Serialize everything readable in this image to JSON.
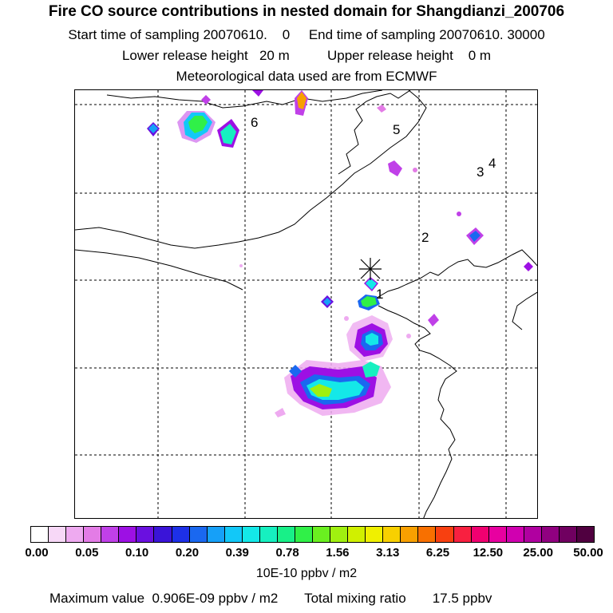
{
  "header": {
    "title": "Fire CO source contributions in nested domain for Shangdianzi_200706",
    "start_label": "Start time of sampling",
    "start_value": "20070610.    0",
    "end_label": "End time of sampling",
    "end_value": "20070610. 30000",
    "lower_label": "Lower release height",
    "lower_value": "20 m",
    "upper_label": "Upper release height",
    "upper_value": "0 m",
    "met_line": "Meteorological data used are from ECMWF"
  },
  "chart_data": {
    "type": "heatmap",
    "title": "Fire CO source contributions in nested domain for Shangdianzi_200706",
    "grid": true,
    "station_labels": [
      "1",
      "2",
      "3",
      "4",
      "5",
      "6"
    ],
    "colorbar": {
      "tick_labels": [
        "0.00",
        "0.05",
        "0.10",
        "0.20",
        "0.39",
        "0.78",
        "1.56",
        "3.13",
        "6.25",
        "12.50",
        "25.00",
        "50.00"
      ],
      "colors": [
        "#ffffff",
        "#f7d8f7",
        "#eeaaf0",
        "#e37ce6",
        "#c040e8",
        "#9d10e4",
        "#6a10e0",
        "#3a14d8",
        "#1d30e8",
        "#1a68f0",
        "#16a0f8",
        "#12c8f8",
        "#14e8e8",
        "#16f0c0",
        "#18f088",
        "#30f048",
        "#6af020",
        "#a0f010",
        "#d0f000",
        "#f0f000",
        "#f8d000",
        "#f8a000",
        "#f87000",
        "#f84010",
        "#f82040",
        "#f00070",
        "#e800a0",
        "#d000b0",
        "#b000a0",
        "#900080",
        "#700060",
        "#500040"
      ],
      "unit": "10E-10 ppbv / m2"
    },
    "max_value_label": "Maximum value",
    "max_value": "0.906E-09 ppbv / m2",
    "total_label": "Total mixing ratio",
    "total_value": "17.5 ppbv"
  }
}
